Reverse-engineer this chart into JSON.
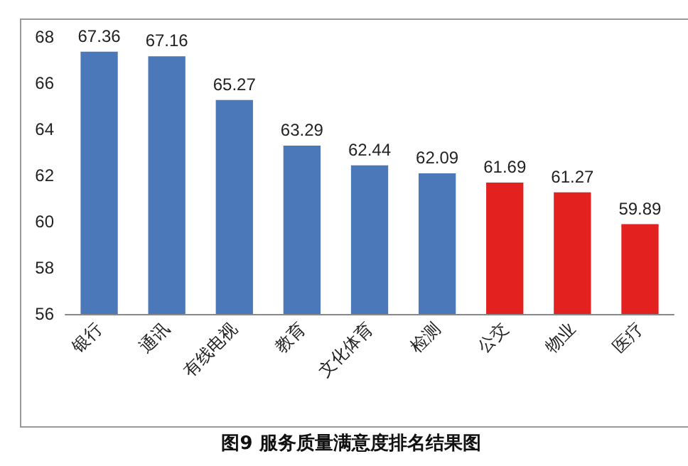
{
  "chart_data": {
    "type": "bar",
    "title": "图9 服务质量满意度排名结果图",
    "categories": [
      "银行",
      "通讯",
      "有线电视",
      "教育",
      "文化体育",
      "检测",
      "公交",
      "物业",
      "医疗"
    ],
    "values": [
      67.36,
      67.16,
      65.27,
      63.29,
      62.44,
      62.09,
      61.69,
      61.27,
      59.89
    ],
    "colors": [
      "#4a78b8",
      "#4a78b8",
      "#4a78b8",
      "#4a78b8",
      "#4a78b8",
      "#4a78b8",
      "#e3221f",
      "#e3221f",
      "#e3221f"
    ],
    "ylim": [
      56,
      68
    ],
    "yticks": [
      56,
      58,
      60,
      62,
      64,
      66,
      68
    ],
    "grid": false,
    "data_labels": true
  }
}
